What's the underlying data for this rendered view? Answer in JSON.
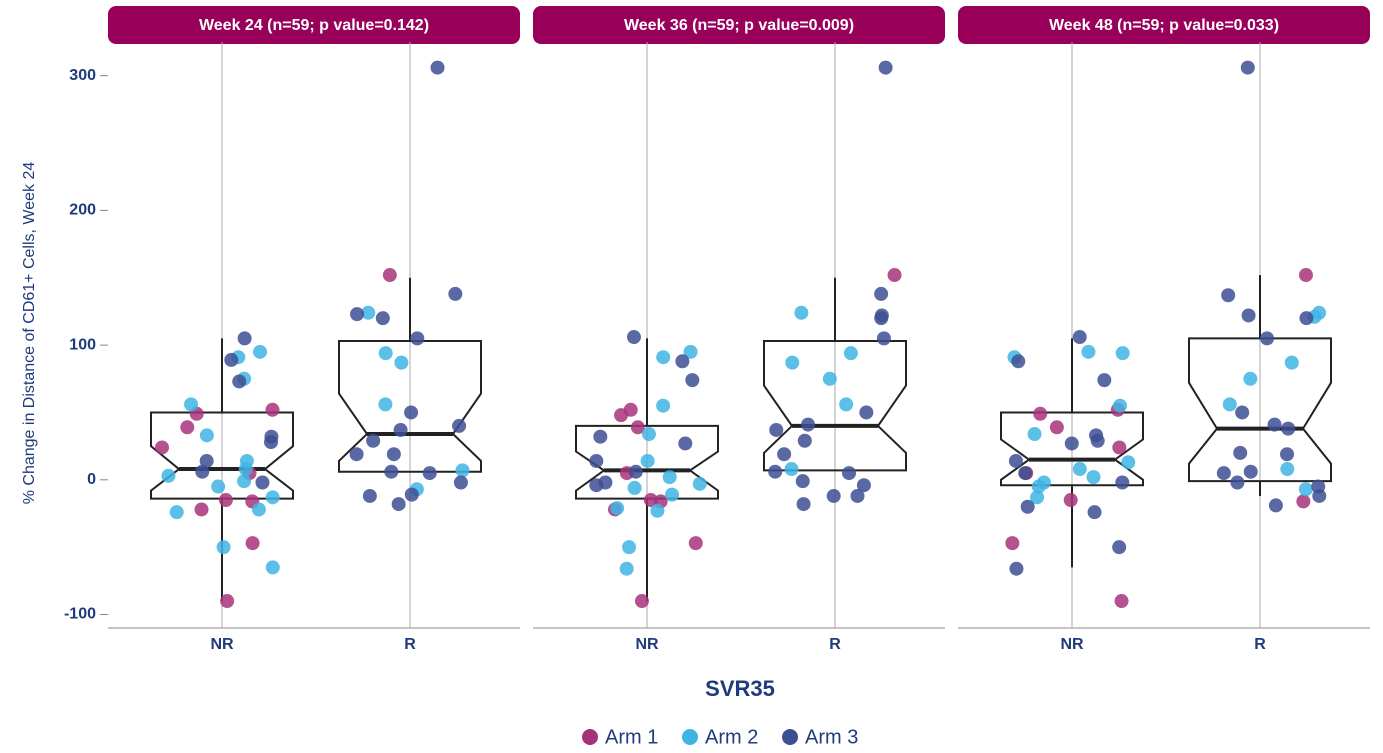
{
  "chart_data": {
    "type": "box",
    "y_label": "% Change in Distance of CD61+ Cells, Week 24",
    "x_label": "SVR35",
    "categories": [
      "NR",
      "R"
    ],
    "ylim": [
      -110,
      325
    ],
    "yticks": [
      -100,
      0,
      100,
      200,
      300
    ],
    "series": [
      {
        "name": "Arm 1",
        "color": "#a8327a"
      },
      {
        "name": "Arm 2",
        "color": "#3fb4e4"
      },
      {
        "name": "Arm 3",
        "color": "#3d4f93"
      }
    ],
    "facets": [
      {
        "title": "Week 24 (n=59; p value=0.142)",
        "groups": [
          {
            "box": {
              "whislo": -90,
              "q1": -14,
              "notch_lo": -8,
              "med": 8,
              "notch_hi": 25,
              "q3": 50,
              "whishi": 105
            },
            "points": [
              [
                24,
                52,
                49,
                39,
                5,
                -15,
                -22,
                -16,
                -47,
                -90
              ],
              [
                75,
                91,
                95,
                56,
                33,
                14,
                8,
                3,
                -1,
                -5,
                -13,
                -22,
                -24,
                -50,
                -65
              ],
              [
                105,
                73,
                89,
                32,
                28,
                14,
                6,
                -2
              ]
            ]
          },
          {
            "box": {
              "whislo": 6,
              "q1": 6,
              "notch_lo": 14,
              "med": 34,
              "notch_hi": 64,
              "q3": 103,
              "whishi": 150
            },
            "points": [
              [
                152
              ],
              [
                124,
                94,
                87,
                56,
                7,
                -7
              ],
              [
                306,
                138,
                123,
                120,
                105,
                50,
                37,
                29,
                40,
                19,
                19,
                6,
                5,
                -2,
                -11,
                -12,
                -18
              ]
            ]
          }
        ]
      },
      {
        "title": "Week 36 (n=59; p value=0.009)",
        "groups": [
          {
            "box": {
              "whislo": -90,
              "q1": -14,
              "notch_lo": -8,
              "med": 7,
              "notch_hi": 21,
              "q3": 40,
              "whishi": 105
            },
            "points": [
              [
                48,
                52,
                39,
                5,
                -15,
                -16,
                -22,
                -47,
                -90
              ],
              [
                95,
                91,
                55,
                34,
                14,
                2,
                -3,
                -6,
                -11,
                -21,
                -23,
                -50,
                -66
              ],
              [
                106,
                88,
                74,
                32,
                27,
                14,
                6,
                -2,
                -4
              ]
            ]
          },
          {
            "box": {
              "whislo": 7,
              "q1": 7,
              "notch_lo": 20,
              "med": 40,
              "notch_hi": 70,
              "q3": 103,
              "whishi": 150
            },
            "points": [
              [
                152
              ],
              [
                124,
                94,
                87,
                75,
                56,
                8
              ],
              [
                306,
                138,
                122,
                120,
                105,
                50,
                41,
                37,
                29,
                19,
                6,
                5,
                -1,
                -4,
                -12,
                -12,
                -18
              ]
            ]
          }
        ]
      },
      {
        "title": "Week 48 (n=59; p value=0.033)",
        "groups": [
          {
            "box": {
              "whislo": -65,
              "q1": -4,
              "notch_lo": 0,
              "med": 15,
              "notch_hi": 30,
              "q3": 50,
              "whishi": 105
            },
            "points": [
              [
                52,
                49,
                39,
                24,
                5,
                -15,
                -47,
                -90
              ],
              [
                95,
                94,
                91,
                55,
                34,
                13,
                8,
                2,
                -2,
                -5,
                -13
              ],
              [
                106,
                88,
                74,
                33,
                29,
                27,
                14,
                5,
                -2,
                -20,
                -24,
                -50,
                -66
              ]
            ]
          },
          {
            "box": {
              "whislo": -12,
              "q1": -1,
              "notch_lo": 12,
              "med": 38,
              "notch_hi": 72,
              "q3": 105,
              "whishi": 152
            },
            "points": [
              [
                152,
                -16
              ],
              [
                124,
                121,
                87,
                75,
                56,
                8,
                -7
              ],
              [
                306,
                137,
                122,
                120,
                105,
                50,
                41,
                38,
                20,
                19,
                6,
                5,
                -2,
                -5,
                -12,
                -19
              ]
            ]
          }
        ]
      }
    ]
  }
}
